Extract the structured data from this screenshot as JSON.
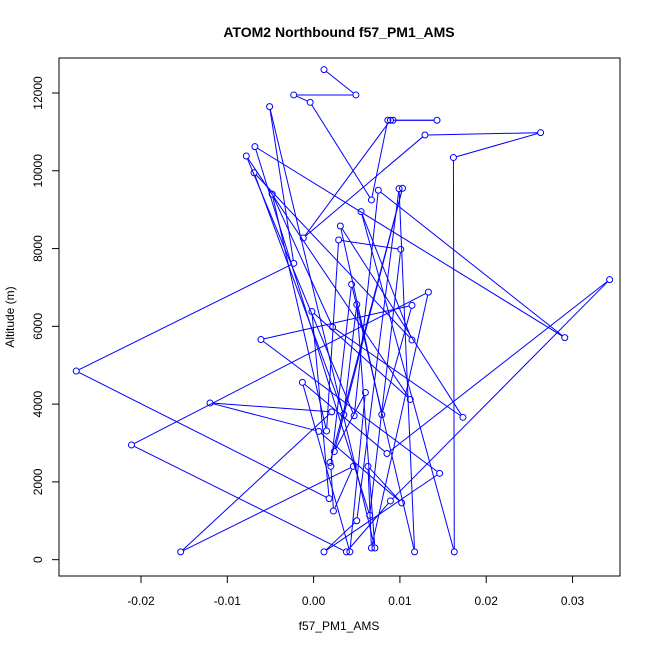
{
  "chart_data": {
    "type": "line",
    "title": "ATOM2 Northbound f57_PM1_AMS",
    "xlabel": "f57_PM1_AMS",
    "ylabel": "Altitude (m)",
    "xlim": [
      -0.0295,
      0.0355
    ],
    "ylim": [
      -420,
      12900
    ],
    "x_ticks": [
      -0.02,
      -0.01,
      0.0,
      0.01,
      0.02,
      0.03
    ],
    "x_tick_labels": [
      "-0.02",
      "-0.01",
      "0.00",
      "0.01",
      "0.02",
      "0.03"
    ],
    "y_ticks": [
      0,
      2000,
      4000,
      6000,
      8000,
      10000,
      12000
    ],
    "y_tick_labels": [
      "0",
      "2000",
      "4000",
      "6000",
      "8000",
      "10000",
      "12000"
    ],
    "grid": false,
    "line_color": "#0000ff",
    "marker": "open-circle",
    "points": [
      [
        0.0012,
        12600
      ],
      [
        0.0049,
        11950
      ],
      [
        -0.0023,
        11950
      ],
      [
        -0.0004,
        11760
      ],
      [
        0.0067,
        9250
      ],
      [
        0.0086,
        11300
      ],
      [
        0.0092,
        11300
      ],
      [
        0.0143,
        11300
      ],
      [
        0.0089,
        11300
      ],
      [
        -0.0012,
        8270
      ],
      [
        0.0129,
        10920
      ],
      [
        0.0263,
        10980
      ],
      [
        0.0162,
        10340
      ],
      [
        0.0163,
        200
      ],
      [
        0.0055,
        8950
      ],
      [
        0.0114,
        5650
      ],
      [
        -0.0069,
        9950
      ],
      [
        0.0035,
        3730
      ],
      [
        0.005,
        6560
      ],
      [
        0.0071,
        300
      ],
      [
        -0.0051,
        11650
      ],
      [
        -0.0023,
        7620
      ],
      [
        -0.0275,
        4850
      ],
      [
        0.0018,
        1570
      ],
      [
        -0.0002,
        6380
      ],
      [
        0.0112,
        4120
      ],
      [
        -0.0078,
        10380
      ],
      [
        0.0047,
        3700
      ],
      [
        0.0075,
        9500
      ],
      [
        0.0291,
        5710
      ],
      [
        -0.0068,
        10620
      ],
      [
        0.0065,
        1140
      ],
      [
        0.0101,
        7980
      ],
      [
        0.0029,
        8220
      ],
      [
        0.0015,
        3310
      ],
      [
        -0.0048,
        9400
      ],
      [
        0.0022,
        5980
      ],
      [
        0.0173,
        3660
      ],
      [
        0.0031,
        8580
      ],
      [
        0.0079,
        3730
      ],
      [
        0.0114,
        6540
      ],
      [
        -0.0061,
        5660
      ],
      [
        0.0146,
        2220
      ],
      [
        0.0012,
        200
      ],
      [
        0.005,
        1000
      ],
      [
        0.0099,
        9540
      ],
      [
        0.0117,
        200
      ],
      [
        0.0044,
        7080
      ],
      [
        0.002,
        2400
      ],
      [
        0.0023,
        1250
      ],
      [
        0.0046,
        2400
      ],
      [
        -0.0154,
        200
      ],
      [
        0.0021,
        3800
      ],
      [
        -0.012,
        4030
      ],
      [
        0.0006,
        3300
      ],
      [
        0.0102,
        1460
      ],
      [
        0.0063,
        2400
      ],
      [
        0.0067,
        300
      ],
      [
        0.0133,
        6880
      ],
      [
        -0.0211,
        2950
      ],
      [
        0.0038,
        200
      ],
      [
        0.0089,
        1510
      ],
      [
        0.0343,
        7200
      ],
      [
        0.0085,
        2730
      ],
      [
        -0.0013,
        4560
      ],
      [
        0.0042,
        200
      ],
      [
        0.006,
        4300
      ],
      [
        0.0024,
        2780
      ],
      [
        0.0103,
        9550
      ],
      [
        0.0019,
        2500
      ]
    ]
  }
}
